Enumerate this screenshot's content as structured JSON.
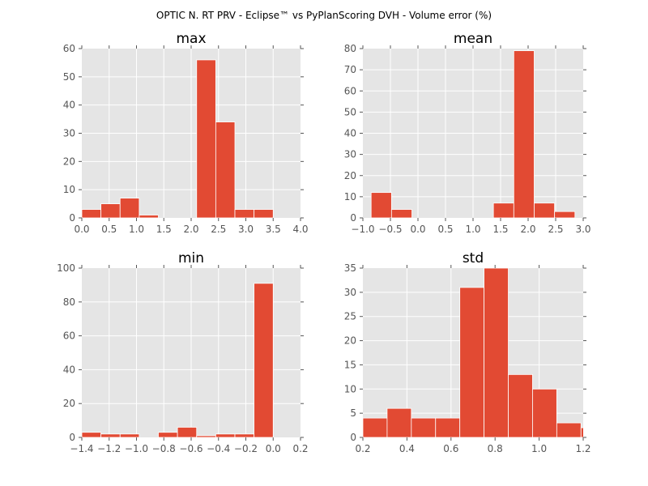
{
  "figure": {
    "title": "OPTIC N. RT PRV - Eclipse™ vs PyPlanScoring DVH - Volume error (%)"
  },
  "chart_data": [
    {
      "type": "bar",
      "title": "max",
      "xlabel": "",
      "ylabel": "",
      "bin_width": 0.35,
      "bins": [
        {
          "x0": 0.0,
          "x1": 0.35,
          "value": 3
        },
        {
          "x0": 0.35,
          "x1": 0.7,
          "value": 5
        },
        {
          "x0": 0.7,
          "x1": 1.05,
          "value": 7
        },
        {
          "x0": 1.05,
          "x1": 1.4,
          "value": 1
        },
        {
          "x0": 1.4,
          "x1": 1.75,
          "value": 0
        },
        {
          "x0": 1.75,
          "x1": 2.1,
          "value": 0
        },
        {
          "x0": 2.1,
          "x1": 2.45,
          "value": 56
        },
        {
          "x0": 2.45,
          "x1": 2.8,
          "value": 34
        },
        {
          "x0": 2.8,
          "x1": 3.15,
          "value": 3
        },
        {
          "x0": 3.15,
          "x1": 3.5,
          "value": 3
        }
      ],
      "xlim": [
        0.0,
        4.0
      ],
      "ylim": [
        0,
        60
      ],
      "xticks": [
        "0.0",
        "0.5",
        "1.0",
        "1.5",
        "2.0",
        "2.5",
        "3.0",
        "3.5",
        "4.0"
      ],
      "xtick_values": [
        0.0,
        0.5,
        1.0,
        1.5,
        2.0,
        2.5,
        3.0,
        3.5,
        4.0
      ],
      "yticks": [
        "0",
        "10",
        "20",
        "30",
        "40",
        "50",
        "60"
      ],
      "ytick_values": [
        0,
        10,
        20,
        30,
        40,
        50,
        60
      ],
      "grid": true
    },
    {
      "type": "bar",
      "title": "mean",
      "xlabel": "",
      "ylabel": "",
      "bins": [
        {
          "x0": -0.85,
          "x1": -0.48,
          "value": 12
        },
        {
          "x0": -0.48,
          "x1": -0.11,
          "value": 4
        },
        {
          "x0": -0.11,
          "x1": 0.26,
          "value": 0
        },
        {
          "x0": 0.26,
          "x1": 0.63,
          "value": 0
        },
        {
          "x0": 0.63,
          "x1": 1.0,
          "value": 0
        },
        {
          "x0": 1.0,
          "x1": 1.37,
          "value": 0
        },
        {
          "x0": 1.37,
          "x1": 1.74,
          "value": 7
        },
        {
          "x0": 1.74,
          "x1": 2.11,
          "value": 79
        },
        {
          "x0": 2.11,
          "x1": 2.48,
          "value": 7
        },
        {
          "x0": 2.48,
          "x1": 2.85,
          "value": 3
        }
      ],
      "xlim": [
        -1.0,
        3.0
      ],
      "ylim": [
        0,
        80
      ],
      "xticks": [
        "−1.0",
        "−0.5",
        "0.0",
        "0.5",
        "1.0",
        "1.5",
        "2.0",
        "2.5",
        "3.0"
      ],
      "xtick_values": [
        -1.0,
        -0.5,
        0.0,
        0.5,
        1.0,
        1.5,
        2.0,
        2.5,
        3.0
      ],
      "yticks": [
        "0",
        "10",
        "20",
        "30",
        "40",
        "50",
        "60",
        "70",
        "80"
      ],
      "ytick_values": [
        0,
        10,
        20,
        30,
        40,
        50,
        60,
        70,
        80
      ],
      "grid": true
    },
    {
      "type": "bar",
      "title": "min",
      "xlabel": "",
      "ylabel": "",
      "bins": [
        {
          "x0": -1.4,
          "x1": -1.26,
          "value": 3
        },
        {
          "x0": -1.26,
          "x1": -1.12,
          "value": 2
        },
        {
          "x0": -1.12,
          "x1": -0.98,
          "value": 2
        },
        {
          "x0": -0.98,
          "x1": -0.84,
          "value": 0
        },
        {
          "x0": -0.84,
          "x1": -0.7,
          "value": 3
        },
        {
          "x0": -0.7,
          "x1": -0.56,
          "value": 6
        },
        {
          "x0": -0.56,
          "x1": -0.42,
          "value": 1
        },
        {
          "x0": -0.42,
          "x1": -0.28,
          "value": 2
        },
        {
          "x0": -0.28,
          "x1": -0.14,
          "value": 2
        },
        {
          "x0": -0.14,
          "x1": 0.0,
          "value": 91
        }
      ],
      "xlim": [
        -1.4,
        0.2
      ],
      "ylim": [
        0,
        100
      ],
      "xticks": [
        "−1.4",
        "−1.2",
        "−1.0",
        "−0.8",
        "−0.6",
        "−0.4",
        "−0.2",
        "0.0",
        "0.2"
      ],
      "xtick_values": [
        -1.4,
        -1.2,
        -1.0,
        -0.8,
        -0.6,
        -0.4,
        -0.2,
        0.0,
        0.2
      ],
      "yticks": [
        "0",
        "20",
        "40",
        "60",
        "80",
        "100"
      ],
      "ytick_values": [
        0,
        20,
        40,
        60,
        80,
        100
      ],
      "grid": true
    },
    {
      "type": "bar",
      "title": "std",
      "xlabel": "",
      "ylabel": "",
      "bins": [
        {
          "x0": 0.2,
          "x1": 0.31,
          "value": 4
        },
        {
          "x0": 0.31,
          "x1": 0.42,
          "value": 6
        },
        {
          "x0": 0.42,
          "x1": 0.53,
          "value": 4
        },
        {
          "x0": 0.53,
          "x1": 0.64,
          "value": 4
        },
        {
          "x0": 0.64,
          "x1": 0.75,
          "value": 31
        },
        {
          "x0": 0.75,
          "x1": 0.86,
          "value": 35
        },
        {
          "x0": 0.86,
          "x1": 0.97,
          "value": 13
        },
        {
          "x0": 0.97,
          "x1": 1.08,
          "value": 10
        },
        {
          "x0": 1.08,
          "x1": 1.19,
          "value": 3
        },
        {
          "x0": 1.19,
          "x1": 1.3,
          "value": 2
        }
      ],
      "xlim": [
        0.2,
        1.2
      ],
      "ylim": [
        0,
        35
      ],
      "xticks": [
        "0.2",
        "0.4",
        "0.6",
        "0.8",
        "1.0",
        "1.2"
      ],
      "xtick_values": [
        0.2,
        0.4,
        0.6,
        0.8,
        1.0,
        1.2
      ],
      "yticks": [
        "0",
        "5",
        "10",
        "15",
        "20",
        "25",
        "30",
        "35"
      ],
      "ytick_values": [
        0,
        5,
        10,
        15,
        20,
        25,
        30,
        35
      ],
      "grid": true
    }
  ],
  "style": {
    "bar_color": "#E24A33",
    "panel_background": "#E5E5E5",
    "grid_color": "#FFFFFF",
    "tick_color": "#555555"
  }
}
